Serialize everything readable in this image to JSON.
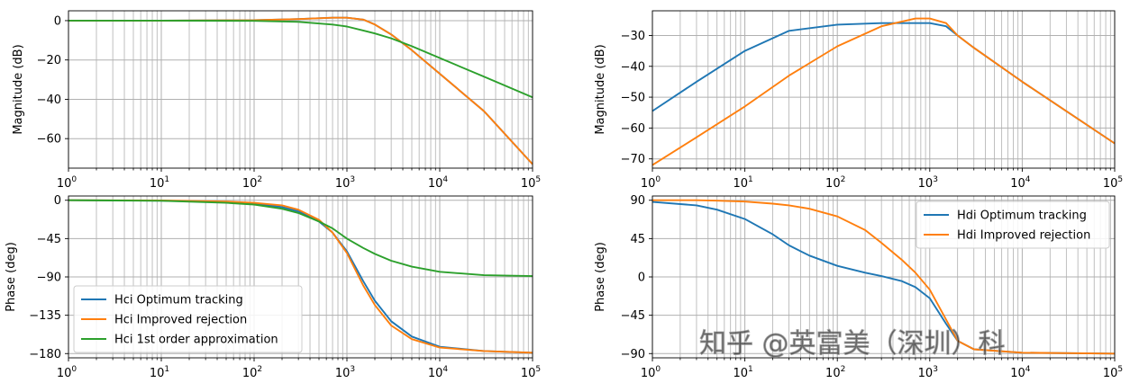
{
  "chart_data": [
    {
      "type": "line",
      "id": "hci-magnitude",
      "title": "",
      "xlabel": "",
      "ylabel": "Magnitude (dB)",
      "xscale": "log",
      "xlim": [
        1,
        100000
      ],
      "ylim": [
        -75,
        5
      ],
      "xticks": [
        1,
        10,
        100,
        1000,
        10000,
        100000
      ],
      "xtick_labels": [
        [
          "10",
          "0"
        ],
        [
          "10",
          "1"
        ],
        [
          "10",
          "2"
        ],
        [
          "10",
          "3"
        ],
        [
          "10",
          "4"
        ],
        [
          "10",
          "5"
        ]
      ],
      "yticks": [
        0,
        -20,
        -40,
        -60
      ],
      "ytick_labels": [
        "0",
        "−20",
        "−40",
        "−60"
      ],
      "grid": true,
      "series": [
        {
          "name": "Hci Optimum tracking",
          "color": "#1f77b4",
          "x": [
            1,
            10,
            100,
            300,
            700,
            1000,
            1500,
            2000,
            3000,
            5000,
            10000,
            30000,
            100000
          ],
          "y": [
            0,
            0,
            0.2,
            0.8,
            1.5,
            1.5,
            0.5,
            -2,
            -7,
            -15,
            -27,
            -46,
            -73
          ]
        },
        {
          "name": "Hci Improved rejection",
          "color": "#ff7f0e",
          "x": [
            1,
            10,
            100,
            300,
            700,
            1000,
            1500,
            2000,
            3000,
            5000,
            10000,
            30000,
            100000
          ],
          "y": [
            0,
            0,
            0.2,
            0.8,
            1.5,
            1.5,
            0.5,
            -2,
            -7,
            -15,
            -27,
            -46,
            -73
          ]
        },
        {
          "name": "Hci 1st order approximation",
          "color": "#2ca02c",
          "x": [
            1,
            10,
            100,
            300,
            700,
            1000,
            1500,
            2000,
            3000,
            5000,
            10000,
            30000,
            100000
          ],
          "y": [
            0,
            0,
            -0.1,
            -0.6,
            -2,
            -3,
            -5,
            -6.5,
            -9,
            -13,
            -19,
            -28.5,
            -39
          ]
        }
      ]
    },
    {
      "type": "line",
      "id": "hci-phase",
      "title": "",
      "xlabel": "",
      "ylabel": "Phase (deg)",
      "xscale": "log",
      "xlim": [
        1,
        100000
      ],
      "ylim": [
        -185,
        5
      ],
      "xticks": [
        1,
        10,
        100,
        1000,
        10000,
        100000
      ],
      "xtick_labels": [
        [
          "10",
          "0"
        ],
        [
          "10",
          "1"
        ],
        [
          "10",
          "2"
        ],
        [
          "10",
          "3"
        ],
        [
          "10",
          "4"
        ],
        [
          "10",
          "5"
        ]
      ],
      "yticks": [
        0,
        -45,
        -90,
        -135,
        -180
      ],
      "ytick_labels": [
        "0",
        "−45",
        "−90",
        "−135",
        "−180"
      ],
      "grid": true,
      "legend": "lower-left",
      "series": [
        {
          "name": "Hci Optimum tracking",
          "color": "#1f77b4",
          "x": [
            1,
            10,
            50,
            100,
            200,
            300,
            500,
            700,
            1000,
            1500,
            2000,
            3000,
            5000,
            10000,
            30000,
            100000
          ],
          "y": [
            0,
            -0.5,
            -2,
            -4,
            -8,
            -13,
            -25,
            -38,
            -60,
            -95,
            -118,
            -142,
            -160,
            -172,
            -177,
            -179
          ]
        },
        {
          "name": "Hci Improved rejection",
          "color": "#ff7f0e",
          "x": [
            1,
            10,
            50,
            100,
            200,
            300,
            500,
            700,
            1000,
            1500,
            2000,
            3000,
            5000,
            10000,
            30000,
            100000
          ],
          "y": [
            0,
            -0.3,
            -1.5,
            -3,
            -6,
            -11,
            -23,
            -38,
            -62,
            -100,
            -123,
            -147,
            -163,
            -173,
            -177,
            -179
          ]
        },
        {
          "name": "Hci 1st order approximation",
          "color": "#2ca02c",
          "x": [
            1,
            10,
            50,
            100,
            200,
            300,
            500,
            700,
            1000,
            1500,
            2000,
            3000,
            5000,
            10000,
            30000,
            100000
          ],
          "y": [
            0,
            -0.6,
            -3,
            -5,
            -10,
            -15,
            -25,
            -33,
            -45,
            -56,
            -63,
            -71,
            -78,
            -84,
            -88,
            -89
          ]
        }
      ]
    },
    {
      "type": "line",
      "id": "hdi-magnitude",
      "title": "",
      "xlabel": "",
      "ylabel": "Magnitude (dB)",
      "xscale": "log",
      "xlim": [
        1,
        100000
      ],
      "ylim": [
        -73,
        -22
      ],
      "xticks": [
        1,
        10,
        100,
        1000,
        10000,
        100000
      ],
      "xtick_labels": [
        [
          "10",
          "0"
        ],
        [
          "10",
          "1"
        ],
        [
          "10",
          "2"
        ],
        [
          "10",
          "3"
        ],
        [
          "10",
          "4"
        ],
        [
          "10",
          "5"
        ]
      ],
      "yticks": [
        -30,
        -40,
        -50,
        -60,
        -70
      ],
      "ytick_labels": [
        "−30",
        "−40",
        "−50",
        "−60",
        "−70"
      ],
      "grid": true,
      "series": [
        {
          "name": "Hdi Optimum tracking",
          "color": "#1f77b4",
          "x": [
            1,
            3,
            10,
            30,
            100,
            300,
            1000,
            1500,
            2000,
            3000,
            10000,
            100000
          ],
          "y": [
            -54.5,
            -45,
            -35,
            -28.5,
            -26.5,
            -26,
            -26,
            -27,
            -30,
            -34,
            -45,
            -65
          ]
        },
        {
          "name": "Hdi Improved rejection",
          "color": "#ff7f0e",
          "x": [
            1,
            3,
            10,
            30,
            100,
            300,
            700,
            1000,
            1500,
            2000,
            3000,
            10000,
            100000
          ],
          "y": [
            -72,
            -63,
            -53,
            -43,
            -33.5,
            -27,
            -24.5,
            -24.5,
            -26,
            -30,
            -34,
            -45,
            -65
          ]
        }
      ]
    },
    {
      "type": "line",
      "id": "hdi-phase",
      "title": "",
      "xlabel": "",
      "ylabel": "Phase (deg)",
      "xscale": "log",
      "xlim": [
        1,
        100000
      ],
      "ylim": [
        -95,
        95
      ],
      "xticks": [
        1,
        10,
        100,
        1000,
        10000,
        100000
      ],
      "xtick_labels": [
        [
          "10",
          "0"
        ],
        [
          "10",
          "1"
        ],
        [
          "10",
          "2"
        ],
        [
          "10",
          "3"
        ],
        [
          "10",
          "4"
        ],
        [
          "10",
          "5"
        ]
      ],
      "yticks": [
        90,
        45,
        0,
        -45,
        -90
      ],
      "ytick_labels": [
        "90",
        "45",
        "0",
        "−45",
        "−90"
      ],
      "grid": true,
      "legend": "upper-right",
      "series": [
        {
          "name": "Hdi Optimum tracking",
          "color": "#1f77b4",
          "x": [
            1,
            3,
            5,
            10,
            20,
            30,
            50,
            100,
            200,
            300,
            500,
            700,
            1000,
            1500,
            2000,
            3000,
            10000,
            100000
          ],
          "y": [
            88,
            84,
            79,
            68,
            50,
            37,
            25,
            13,
            5,
            1,
            -5,
            -12,
            -25,
            -55,
            -75,
            -85,
            -89,
            -90
          ]
        },
        {
          "name": "Hdi Improved rejection",
          "color": "#ff7f0e",
          "x": [
            1,
            3,
            5,
            10,
            20,
            30,
            50,
            100,
            200,
            300,
            500,
            700,
            1000,
            1500,
            2000,
            3000,
            10000,
            100000
          ],
          "y": [
            90,
            90,
            89.5,
            88.5,
            86,
            84,
            80,
            71,
            55,
            40,
            20,
            5,
            -15,
            -50,
            -75,
            -85,
            -89,
            -90
          ]
        }
      ]
    }
  ],
  "watermark": {
    "text": "知乎 @英富美（深圳）科"
  }
}
